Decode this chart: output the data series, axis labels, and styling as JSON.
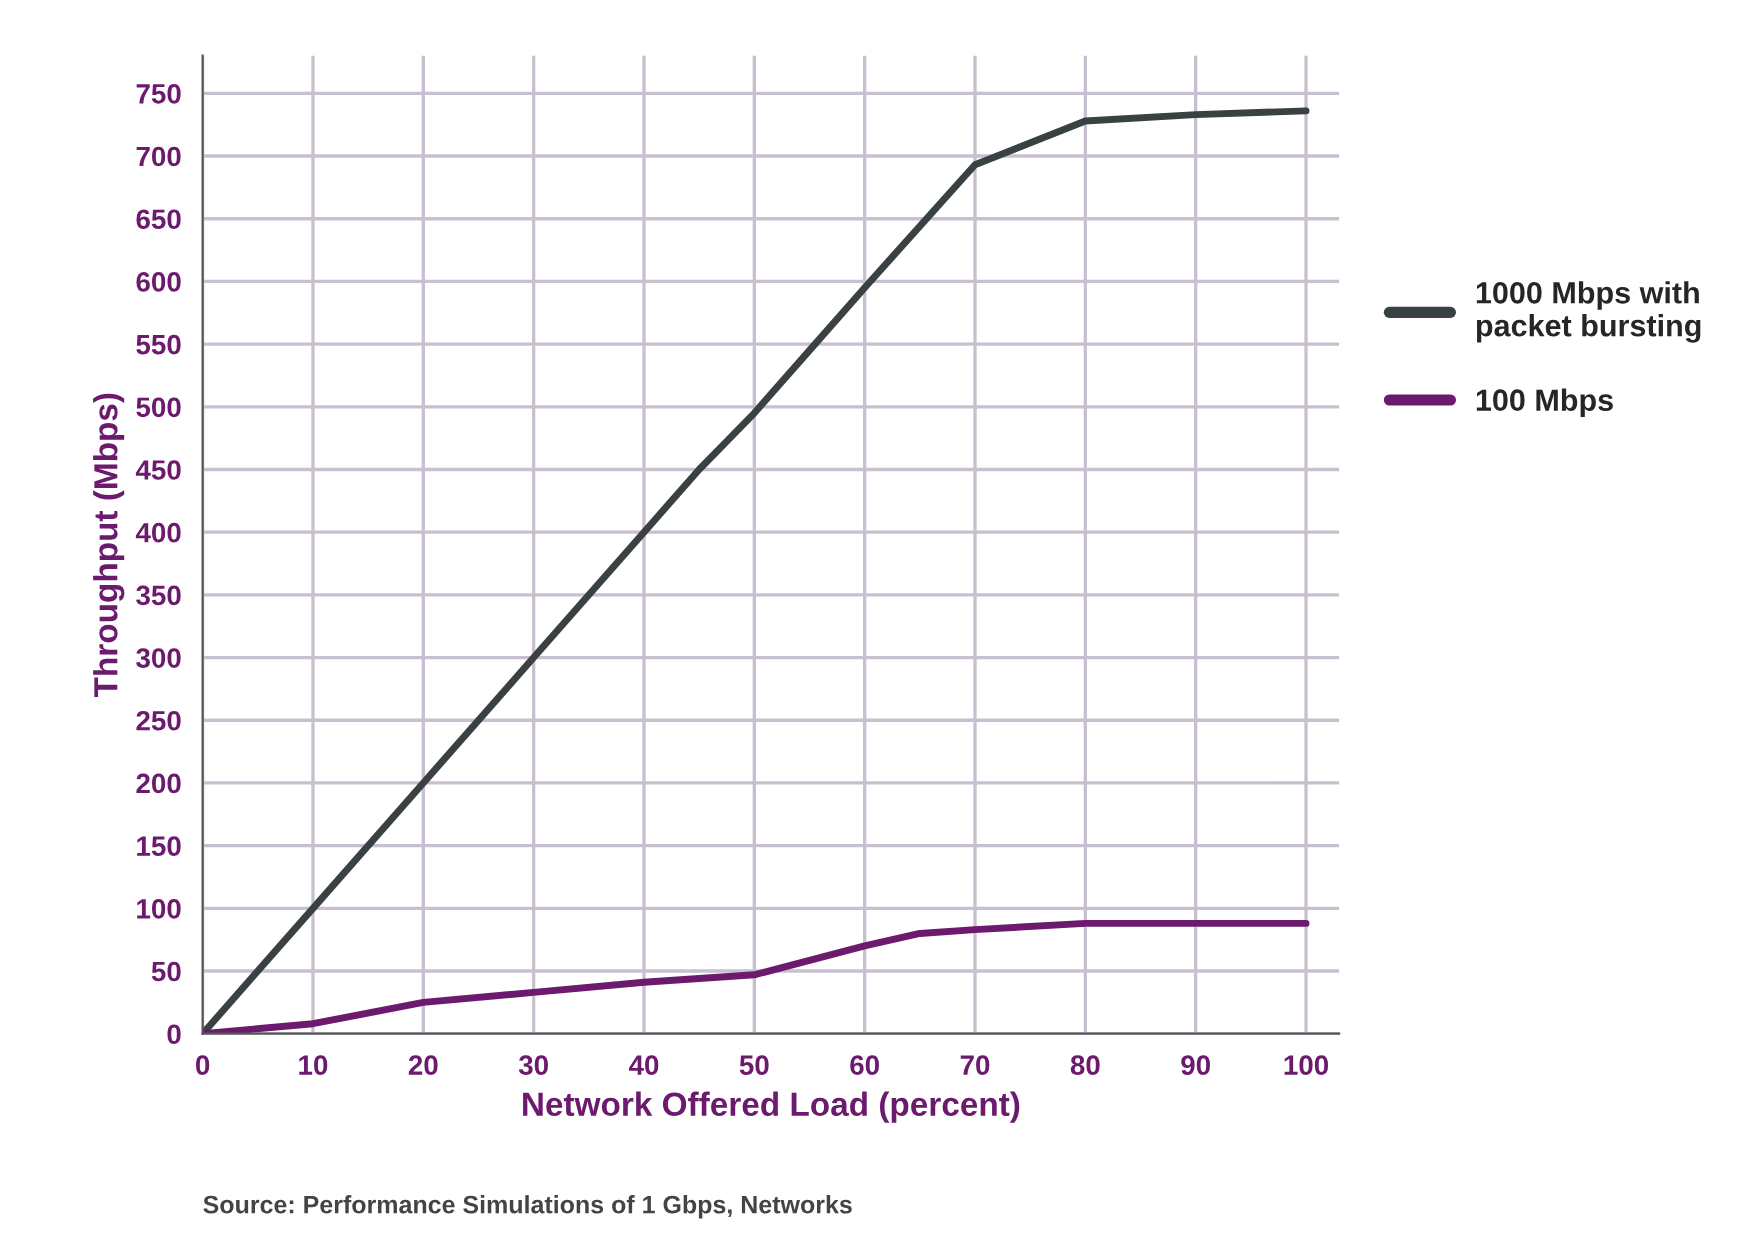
{
  "chart_data": {
    "type": "line",
    "xlabel": "Network Offered Load (percent)",
    "ylabel": "Throughput (Mbps)",
    "series": [
      {
        "name": "1000 Mbps with packet bursting",
        "color": "#3a4142",
        "x": [
          0,
          10,
          20,
          30,
          40,
          45,
          50,
          55,
          60,
          70,
          80,
          90,
          100
        ],
        "values": [
          0,
          100,
          200,
          300,
          400,
          450,
          495,
          545,
          595,
          693,
          728,
          733,
          736
        ]
      },
      {
        "name": "100 Mbps",
        "color": "#6b1a6e",
        "x": [
          0,
          10,
          20,
          30,
          40,
          50,
          60,
          65,
          70,
          80,
          90,
          100
        ],
        "values": [
          0,
          8,
          25,
          33,
          41,
          47,
          70,
          80,
          83,
          88,
          88,
          88
        ]
      }
    ],
    "xlim": [
      0,
      103
    ],
    "xticks": [
      0,
      10,
      20,
      30,
      40,
      50,
      60,
      70,
      80,
      90,
      100
    ],
    "ylim": [
      0,
      780
    ],
    "yticks": [
      0,
      50,
      100,
      150,
      200,
      250,
      300,
      350,
      400,
      450,
      500,
      550,
      600,
      650,
      700,
      750
    ],
    "grid": true,
    "legend": "right",
    "marker": "none",
    "line_style": "solid",
    "annotations": [
      "Source: Performance Simulations of 1 Gbps, Networks"
    ]
  }
}
